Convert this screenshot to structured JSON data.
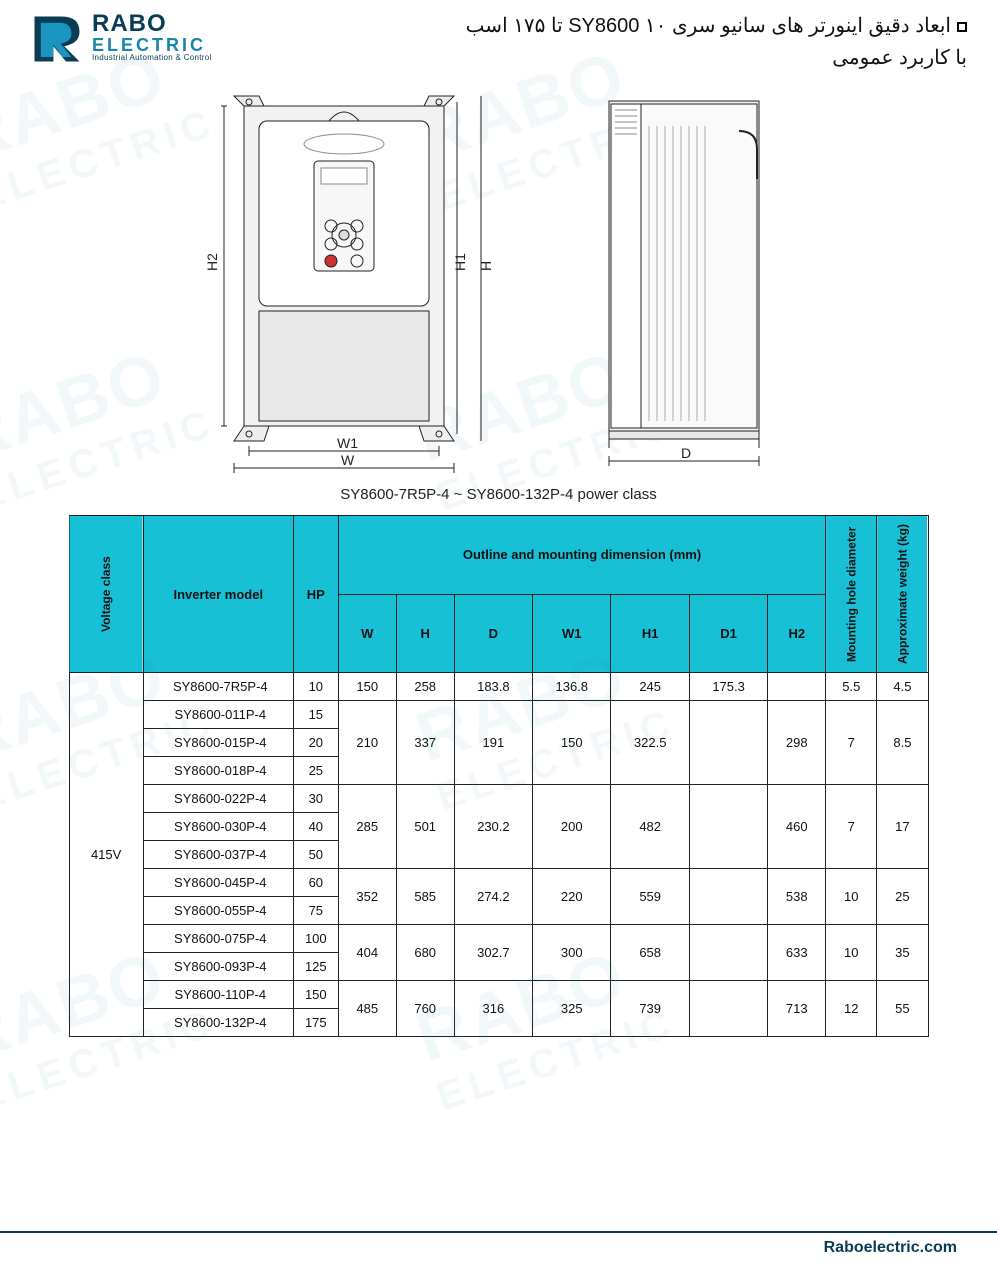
{
  "logo": {
    "line1": "RABO",
    "line2": "ELECTRIC",
    "line3": "Industrial Automation & Control",
    "mark_colors": {
      "dark": "#0a3d55",
      "light": "#1a95bf"
    }
  },
  "title": {
    "line1": "ابعاد دقیق اینورتر های سانیو سری SY8600 ۱۰ تا ۱۷۵ اسب",
    "line2": "با کاربرد عمومی"
  },
  "caption": "SY8600-7R5P-4 ~ SY8600-132P-4 power class",
  "diagram_labels": {
    "W": "W",
    "W1": "W1",
    "H1": "H1",
    "H2": "H2",
    "H": "H",
    "D": "D"
  },
  "table": {
    "header": {
      "voltage_class": "Voltage class",
      "inverter_model": "Inverter model",
      "hp": "HP",
      "outline": "Outline and mounting dimension (mm)",
      "W": "W",
      "H": "H",
      "D": "D",
      "W1": "W1",
      "H1": "H1",
      "D1": "D1",
      "H2": "H2",
      "hole": "Mounting hole diameter",
      "weight": "Approximate weight (kg)"
    },
    "voltage": "415V",
    "header_bg": "#18c0d6",
    "border_color": "#222222",
    "rows": [
      {
        "model": "SY8600-7R5P-4",
        "hp": "10"
      },
      {
        "model": "SY8600-011P-4",
        "hp": "15"
      },
      {
        "model": "SY8600-015P-4",
        "hp": "20"
      },
      {
        "model": "SY8600-018P-4",
        "hp": "25"
      },
      {
        "model": "SY8600-022P-4",
        "hp": "30"
      },
      {
        "model": "SY8600-030P-4",
        "hp": "40"
      },
      {
        "model": "SY8600-037P-4",
        "hp": "50"
      },
      {
        "model": "SY8600-045P-4",
        "hp": "60"
      },
      {
        "model": "SY8600-055P-4",
        "hp": "75"
      },
      {
        "model": "SY8600-075P-4",
        "hp": "100"
      },
      {
        "model": "SY8600-093P-4",
        "hp": "125"
      },
      {
        "model": "SY8600-110P-4",
        "hp": "150"
      },
      {
        "model": "SY8600-132P-4",
        "hp": "175"
      }
    ],
    "groups": [
      {
        "span": 1,
        "W": "150",
        "H": "258",
        "D": "183.8",
        "W1": "136.8",
        "H1": "245",
        "D1": "175.3",
        "H2": "",
        "hole": "5.5",
        "wt": "4.5"
      },
      {
        "span": 3,
        "W": "210",
        "H": "337",
        "D": "191",
        "W1": "150",
        "H1": "322.5",
        "D1": "",
        "H2": "298",
        "hole": "7",
        "wt": "8.5"
      },
      {
        "span": 3,
        "W": "285",
        "H": "501",
        "D": "230.2",
        "W1": "200",
        "H1": "482",
        "D1": "",
        "H2": "460",
        "hole": "7",
        "wt": "17"
      },
      {
        "span": 2,
        "W": "352",
        "H": "585",
        "D": "274.2",
        "W1": "220",
        "H1": "559",
        "D1": "",
        "H2": "538",
        "hole": "10",
        "wt": "25"
      },
      {
        "span": 2,
        "W": "404",
        "H": "680",
        "D": "302.7",
        "W1": "300",
        "H1": "658",
        "D1": "",
        "H2": "633",
        "hole": "10",
        "wt": "35"
      },
      {
        "span": 2,
        "W": "485",
        "H": "760",
        "D": "316",
        "W1": "325",
        "H1": "739",
        "D1": "",
        "H2": "713",
        "hole": "12",
        "wt": "55"
      }
    ]
  },
  "footer": "Raboelectric.com",
  "watermark": {
    "big": "RABO",
    "small": "ELECTRIC"
  }
}
